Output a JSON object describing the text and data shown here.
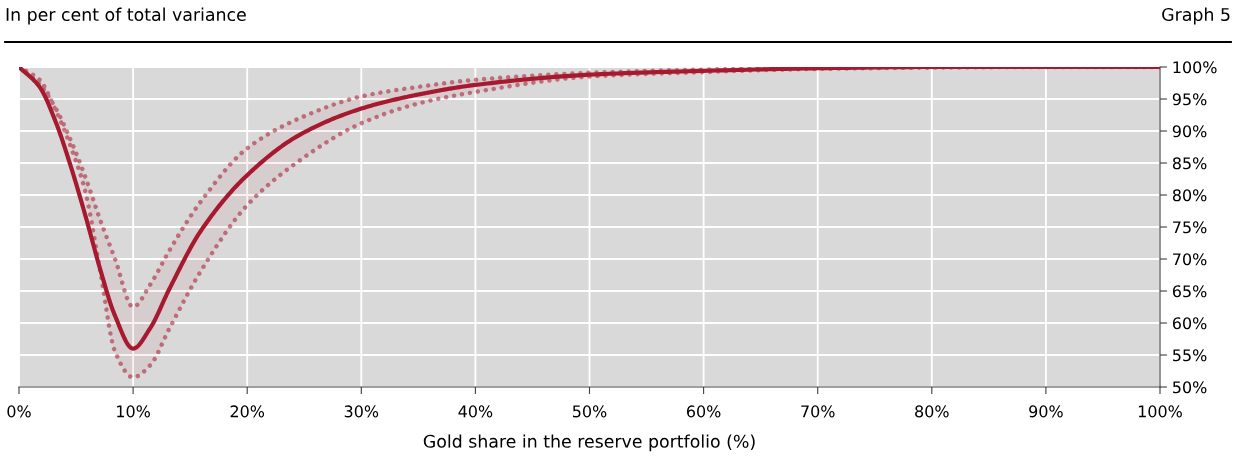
{
  "chart_data": {
    "type": "line",
    "title": "In per cent of total variance",
    "xlabel": "Gold share in the reserve portfolio (%)",
    "annotations": [
      "Graph 5"
    ],
    "xlim": [
      0,
      100
    ],
    "xticks": [
      {
        "value": 0,
        "label": "0%"
      },
      {
        "value": 10,
        "label": "10%"
      },
      {
        "value": 20,
        "label": "20%"
      },
      {
        "value": 30,
        "label": "30%"
      },
      {
        "value": 40,
        "label": "40%"
      },
      {
        "value": 50,
        "label": "50%"
      },
      {
        "value": 60,
        "label": "60%"
      },
      {
        "value": 70,
        "label": "70%"
      },
      {
        "value": 80,
        "label": "80%"
      },
      {
        "value": 90,
        "label": "90%"
      },
      {
        "value": 100,
        "label": "100%"
      }
    ],
    "ylim": [
      50,
      100
    ],
    "yticks": [
      {
        "value": 50,
        "label": "50%"
      },
      {
        "value": 55,
        "label": "55%"
      },
      {
        "value": 60,
        "label": "60%"
      },
      {
        "value": 65,
        "label": "65%"
      },
      {
        "value": 70,
        "label": "70%"
      },
      {
        "value": 75,
        "label": "75%"
      },
      {
        "value": 80,
        "label": "80%"
      },
      {
        "value": 85,
        "label": "85%"
      },
      {
        "value": 90,
        "label": "90%"
      },
      {
        "value": 95,
        "label": "95%"
      },
      {
        "value": 100,
        "label": "100%"
      }
    ],
    "grid": true,
    "marker": "none",
    "series": [
      {
        "color": "#a6192e",
        "line_style": "solid",
        "x": [
          0,
          1.8,
          3.2,
          4.5,
          5.8,
          7.1,
          8.4,
          10,
          11.5,
          13.2,
          15.9,
          20,
          24.6,
          30,
          35,
          40,
          50,
          60,
          70,
          80,
          90,
          100
        ],
        "values": [
          100,
          96.9,
          91.5,
          84.7,
          76.9,
          68.5,
          61.2,
          56.0,
          59.2,
          65.4,
          74.3,
          83.1,
          89.4,
          93.5,
          95.7,
          97.2,
          98.8,
          99.4,
          99.8,
          100,
          100,
          100
        ],
        "upper": [
          100,
          97.3,
          93.6,
          88.7,
          82.9,
          76.2,
          70.1,
          62.5,
          66.0,
          71.4,
          78.9,
          87.3,
          92.0,
          95.4,
          96.9,
          98.0,
          99.1,
          99.6,
          99.9,
          100,
          100,
          100
        ],
        "lower": [
          100,
          98.0,
          93.3,
          87.7,
          80.6,
          68.3,
          55.6,
          51.5,
          53.4,
          59.2,
          68.0,
          78.4,
          85.4,
          91.2,
          94.3,
          96.1,
          98.5,
          99.2,
          99.7,
          99.9,
          100,
          100
        ]
      }
    ]
  }
}
